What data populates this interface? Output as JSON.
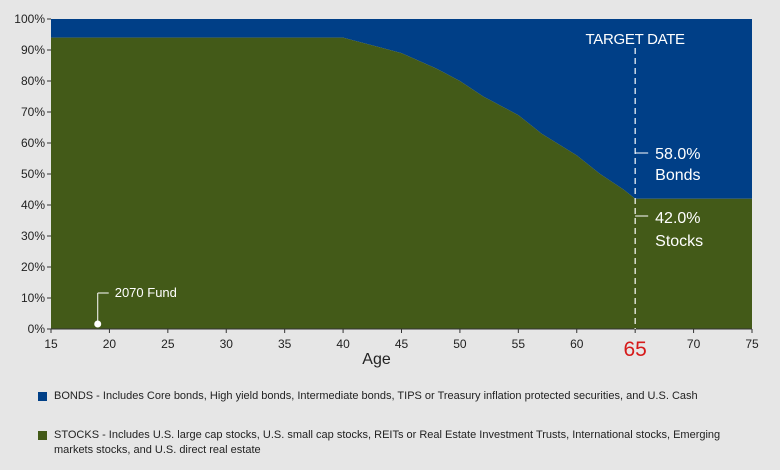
{
  "chart_data": {
    "type": "area",
    "title": "",
    "xlabel": "Age",
    "ylabel": "",
    "xlim": [
      15,
      75
    ],
    "ylim": [
      0,
      100
    ],
    "x_ticks": [
      15,
      20,
      25,
      30,
      35,
      40,
      45,
      50,
      55,
      60,
      65,
      70,
      75
    ],
    "y_ticks": [
      0,
      10,
      20,
      30,
      40,
      50,
      60,
      70,
      80,
      90,
      100
    ],
    "y_tick_labels": [
      "0%",
      "10%",
      "20%",
      "30%",
      "40%",
      "50%",
      "60%",
      "70%",
      "80%",
      "90%",
      "100%"
    ],
    "x_tick_labels": [
      "15",
      "20",
      "25",
      "30",
      "35",
      "40",
      "45",
      "50",
      "55",
      "60",
      "65",
      "70",
      "75"
    ],
    "highlight_tick": "65",
    "series": [
      {
        "name": "Stocks",
        "color": "#435a18",
        "x": [
          15,
          40,
          41,
          43,
          45,
          48,
          50,
          52,
          55,
          57,
          60,
          62,
          64,
          65,
          75
        ],
        "values": [
          94,
          94,
          93,
          91,
          89,
          84,
          80,
          75,
          69,
          63,
          56,
          50,
          45,
          42,
          42
        ]
      },
      {
        "name": "Bonds",
        "color": "#003f87",
        "x": [
          15,
          40,
          41,
          43,
          45,
          48,
          50,
          52,
          55,
          57,
          60,
          62,
          64,
          65,
          75
        ],
        "values": [
          6,
          6,
          7,
          9,
          11,
          16,
          20,
          25,
          31,
          37,
          44,
          50,
          55,
          58,
          58
        ]
      }
    ],
    "target_date": {
      "x": 65,
      "label": "TARGET DATE"
    },
    "annotations": {
      "bonds_pct": "58.0%",
      "bonds_label": "Bonds",
      "stocks_pct": "42.0%",
      "stocks_label": "Stocks",
      "fund_label": "2070 Fund",
      "fund_x": 19
    }
  },
  "legend": {
    "bonds": {
      "color": "#003f87",
      "text": "BONDS - Includes Core bonds, High yield bonds, Intermediate bonds, TIPS or Treasury inflation protected securities, and U.S. Cash"
    },
    "stocks": {
      "color": "#435a18",
      "text": "STOCKS - Includes U.S. large cap stocks, U.S. small cap stocks, REITs or Real Estate Investment Trusts, International stocks, Emerging markets stocks, and U.S. direct real estate"
    }
  }
}
